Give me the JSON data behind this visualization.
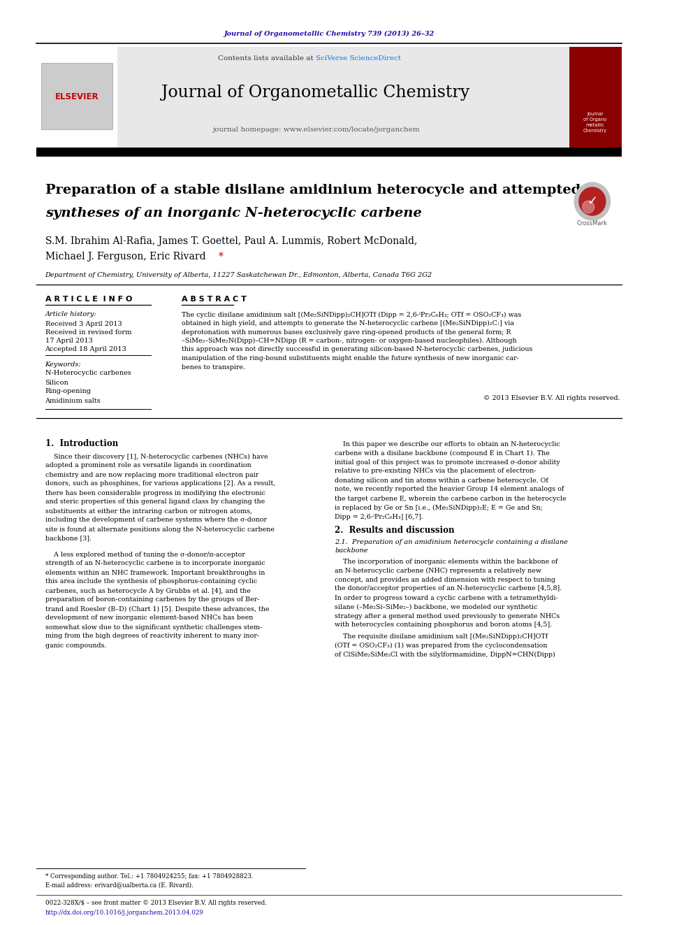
{
  "page_bg": "#ffffff",
  "top_url_text": "Journal of Organometallic Chemistry 739 (2013) 26–32",
  "top_url_color": "#1a0dab",
  "header_bg": "#e8e8e8",
  "contents_text": "Contents lists available at ",
  "sciverse_text": "SciVerse ScienceDirect",
  "sciverse_color": "#1a73e8",
  "journal_title": "Journal of Organometallic Chemistry",
  "homepage_text": "journal homepage: www.elsevier.com/locate/jorganchem",
  "paper_title_line1": "Preparation of a stable disilane amidinium heterocycle and attempted",
  "paper_title_line2": "syntheses of an inorganic N-heterocyclic carbene",
  "authors": "S.M. Ibrahim Al-Rafia, James T. Goettel, Paul A. Lummis, Robert McDonald,",
  "authors2": "Michael J. Ferguson, Eric Rivard*",
  "affiliation": "Department of Chemistry, University of Alberta, 11227 Saskatchewan Dr., Edmonton, Alberta, Canada T6G 2G2",
  "article_info_label": "A R T I C L E  I N F O",
  "abstract_label": "A B S T R A C T",
  "article_history_label": "Article history:",
  "received_text": "Received 3 April 2013",
  "revised_text": "Received in revised form",
  "revised_date": "17 April 2013",
  "accepted_text": "Accepted 18 April 2013",
  "keywords_label": "Keywords:",
  "keyword1": "N-Heterocyclic carbenes",
  "keyword2": "Silicon",
  "keyword3": "Ring-opening",
  "keyword4": "Amidinium salts",
  "copyright_text": "© 2013 Elsevier B.V. All rights reserved.",
  "intro_heading": "1.  Introduction",
  "results_heading": "2.  Results and discussion",
  "results_subheading": "2.1.  Preparation of an amidinium heterocycle containing a disilane",
  "results_subheading2": "backbone",
  "footnote_star": "* Corresponding author. Tel.: +1 7804924255; fax: +1 7804928823.",
  "footnote_email": "E-mail address: erivard@ualberta.ca (E. Rivard).",
  "issn_text": "0022-328X/$ – see front matter © 2013 Elsevier B.V. All rights reserved.",
  "doi_text": "http://dx.doi.org/10.1016/j.jorganchem.2013.04.029"
}
